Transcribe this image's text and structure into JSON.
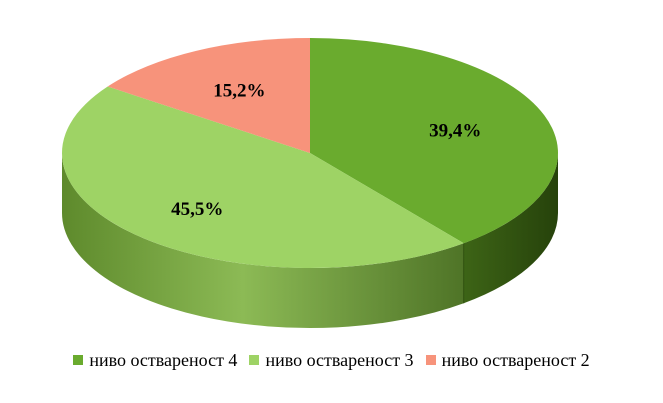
{
  "chart_data": {
    "type": "pie",
    "style": "3d",
    "categories": [
      "ниво оствareности 4",
      "ниво оствareности 3",
      "ниво оствareности 2"
    ],
    "values": [
      39.4,
      45.5,
      15.2
    ],
    "value_labels": [
      "39,4%",
      "45,5%",
      "15,2%"
    ],
    "colors": [
      "#6aab2e",
      "#9ed365",
      "#f7937b"
    ],
    "side_colors": [
      "#3f6a18",
      "#6a9a3a",
      "#c46a55"
    ],
    "legend_position": "bottom",
    "legend": [
      {
        "label": "ниво оствареност 4",
        "color": "#6aab2e"
      },
      {
        "label": "ниво оствареност 3",
        "color": "#9ed365"
      },
      {
        "label": "ниво оствареност 2",
        "color": "#f7937b"
      }
    ]
  },
  "legend_labels": {
    "item0": "ниво оствareности 4",
    "item1": "ниво оствareности 3",
    "item2": "ниво оствareности 2"
  }
}
